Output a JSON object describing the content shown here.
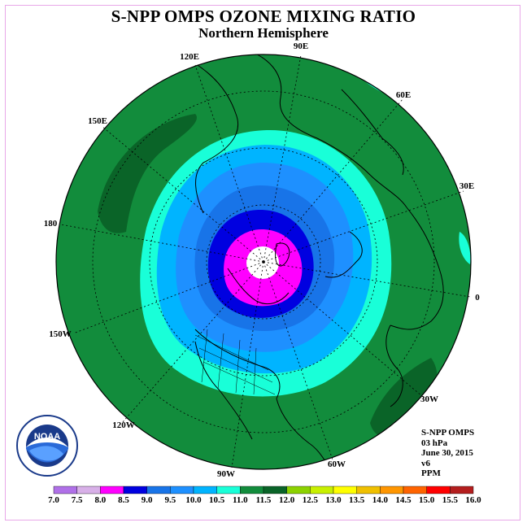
{
  "header": {
    "title": "S-NPP OMPS OZONE MIXING RATIO",
    "subtitle": "Northern Hemisphere"
  },
  "map": {
    "projection": "polar-stereographic-north",
    "longitude_labels": [
      "120E",
      "90E",
      "60E",
      "150E",
      "30E",
      "180",
      "0",
      "150W",
      "30W",
      "120W",
      "90W",
      "60W"
    ],
    "contour_colors": {
      "7.5-8.0": "#d8b0e8",
      "8.0-8.5": "#ff00ff",
      "8.5-9.0": "#0000e0",
      "9.0-9.5": "#1874e8",
      "9.5-10.0": "#1e90ff",
      "10.0-10.5": "#00b4ff",
      "10.5-11.0": "#19ffd8",
      "11.0-11.5": "#128c3c",
      "11.5-12.0": "#0a6428"
    }
  },
  "info": {
    "line1": "S-NPP OMPS",
    "line2": "03 hPa",
    "line3": "June 30, 2015",
    "line4": "v6",
    "line5": "PPM"
  },
  "colorbar": {
    "labels": [
      "7.0",
      "7.5",
      "8.0",
      "8.5",
      "9.0",
      "9.5",
      "10.0",
      "10.5",
      "11.0",
      "11.5",
      "12.0",
      "12.5",
      "13.0",
      "13.5",
      "14.0",
      "14.5",
      "15.0",
      "15.5",
      "16.0"
    ],
    "colors": [
      "#b070e8",
      "#d8b0e8",
      "#ff00ff",
      "#0000e0",
      "#1874e8",
      "#1e90ff",
      "#00b4ff",
      "#19ffd8",
      "#128c3c",
      "#0a6428",
      "#8cd200",
      "#c8f000",
      "#ffff00",
      "#f0c000",
      "#ff9600",
      "#ff6400",
      "#ff0000",
      "#b41e1e"
    ]
  },
  "logo": {
    "text": "NOAA",
    "ring_text": "NATIONAL OCEANIC AND ATMOSPHERIC ADMINISTRATION · U.S. DEPARTMENT OF COMMERCE"
  }
}
